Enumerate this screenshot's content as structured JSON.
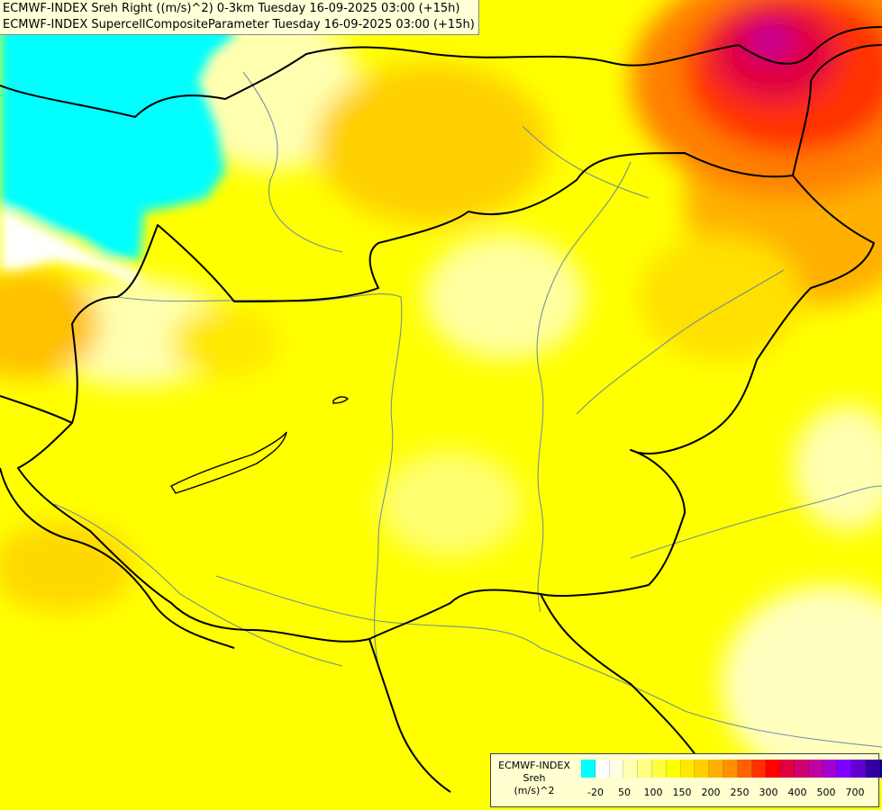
{
  "header": {
    "line1": "ECMWF-INDEX Sreh Right ((m/s)^2) 0-3km Tuesday 16-09-2025 03:00 (+15h)",
    "line2": "ECMWF-INDEX SupercellCompositeParameter Tuesday 16-09-2025 03:00 (+15h)"
  },
  "legend": {
    "title_line1": "ECMWF-INDEX",
    "title_line2": "Sreh",
    "title_line3": "(m/s)^2",
    "colors": [
      "#00ffff",
      "#ffffff",
      "#ffffe0",
      "#ffffb0",
      "#ffff80",
      "#ffff40",
      "#ffff00",
      "#ffe800",
      "#ffd000",
      "#ffb000",
      "#ff9000",
      "#ff6000",
      "#ff3000",
      "#ff0000",
      "#e00040",
      "#d00070",
      "#c000a0",
      "#a000d0",
      "#8000ff",
      "#6000d0",
      "#3000a0",
      "#000080"
    ],
    "ticks": [
      "-20",
      "50",
      "100",
      "150",
      "200",
      "250",
      "300",
      "400",
      "500",
      "700"
    ]
  }
}
